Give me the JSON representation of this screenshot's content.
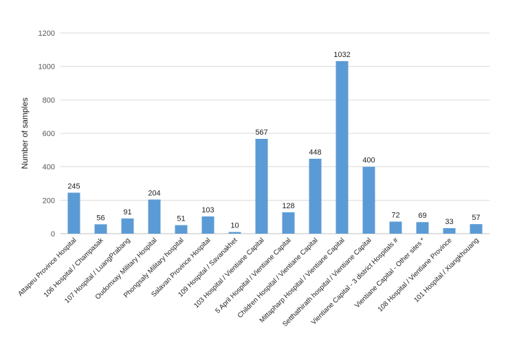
{
  "chart_data": {
    "type": "bar",
    "title": "",
    "xlabel": "",
    "ylabel": "Number of samples",
    "ylim": [
      0,
      1200
    ],
    "yticks": [
      "0",
      "200",
      "400",
      "600",
      "800",
      "1000",
      "1200"
    ],
    "grid": true,
    "legend": "none",
    "bar_color": "#5b9bd5",
    "categories": [
      "Attapeu Province Hospital",
      "106 Hospital / Champasak",
      "107 Hospital / LuangPrabang",
      "Oudomxay Military Hospital",
      "Phongsaly Military hospital",
      "Salavan Province Hospital",
      "109 Hospital / Savanakhet",
      "103 Hospital / Vientiane Capital",
      "5 April Hospital / Vientiane Capital",
      "Children Hospital / Vientiane Capital",
      "Mittapharp Hospital / Vientiane Capital",
      "Setthathirath hospital / Vientiane Capital",
      "Vientiane Capital - 3 district Hospitals #",
      "Vientiane Capital - Other sites *",
      "108 Hospital / Vientiane Province",
      "101 Hospital / Xiangkhouang"
    ],
    "values": [
      245,
      56,
      91,
      204,
      51,
      103,
      10,
      567,
      128,
      448,
      1032,
      400,
      72,
      69,
      33,
      57
    ]
  }
}
